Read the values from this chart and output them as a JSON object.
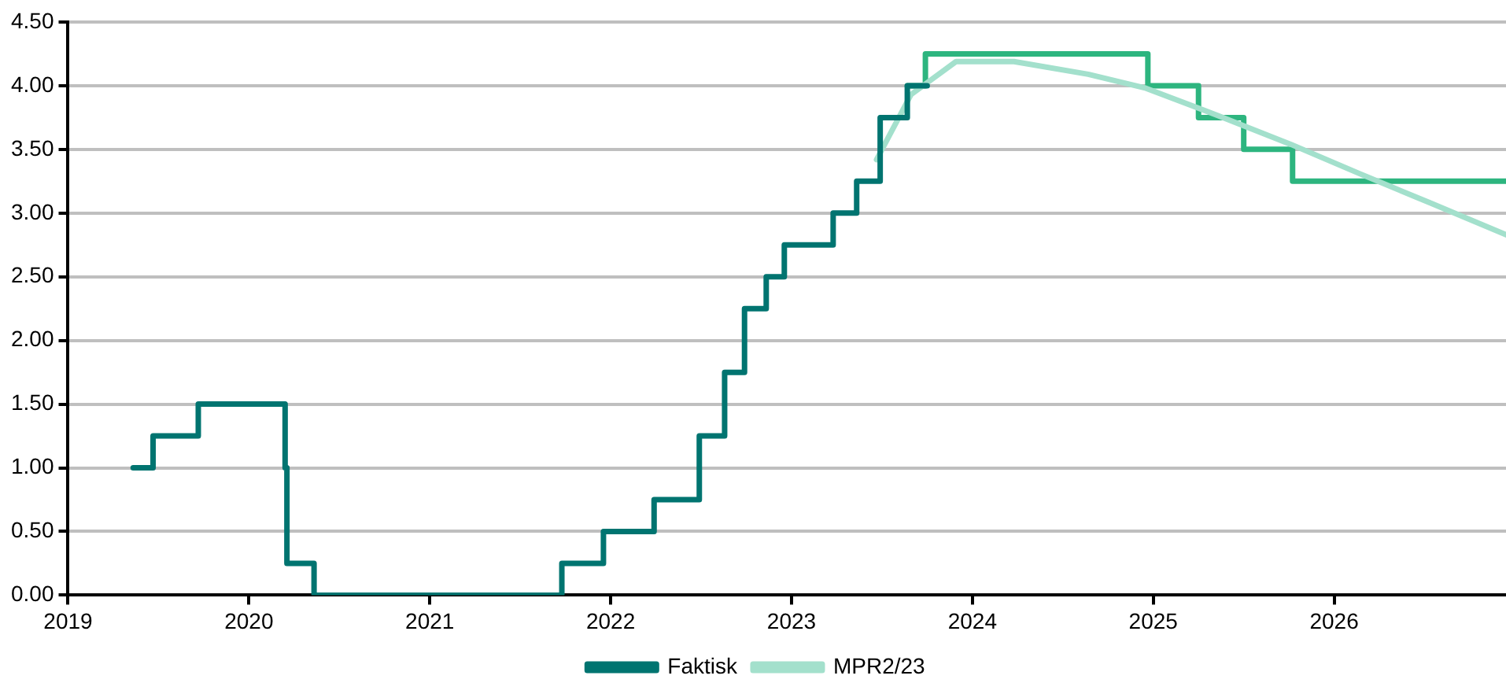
{
  "chart_data": {
    "type": "step",
    "xlim": [
      2019,
      2026.95
    ],
    "xticks": [
      2019,
      2020,
      2021,
      2022,
      2023,
      2024,
      2025,
      2026
    ],
    "ylim": [
      0,
      4.5
    ],
    "yticks": [
      {
        "value": 0,
        "label": "0.00"
      },
      {
        "value": 0.5,
        "label": "0.50"
      },
      {
        "value": 1,
        "label": "1.00"
      },
      {
        "value": 1.5,
        "label": "1.50"
      },
      {
        "value": 2,
        "label": "2.00"
      },
      {
        "value": 2.5,
        "label": "2.50"
      },
      {
        "value": 3,
        "label": "3.00"
      },
      {
        "value": 3.5,
        "label": "3.50"
      },
      {
        "value": 4,
        "label": "4.00"
      },
      {
        "value": 4.5,
        "label": "4.50"
      }
    ],
    "grid": "y",
    "legend": "bottom",
    "marker": "none",
    "series": [
      {
        "name": "Faktisk",
        "color": "#007470",
        "x": [
          2019.36,
          2019.47,
          2019.72,
          2020.2,
          2020.21,
          2020.36,
          2021.73,
          2021.96,
          2022.24,
          2022.49,
          2022.63,
          2022.74,
          2022.86,
          2022.96,
          2023.23,
          2023.36,
          2023.49,
          2023.64,
          2023.75
        ],
        "values": [
          1,
          1.25,
          1.5,
          1,
          0.25,
          0,
          0.25,
          0.5,
          0.75,
          1.25,
          1.75,
          2.25,
          2.5,
          2.75,
          3,
          3.25,
          3.75,
          4,
          4
        ]
      },
      {
        "name": "MPR2/23",
        "type": "line",
        "color": "#a3e0cc",
        "x": [
          2023.47,
          2023.66,
          2023.91,
          2024.23,
          2024.64,
          2024.96,
          2025.35,
          2025.76,
          2026.14,
          2026.53,
          2026.95
        ],
        "values": [
          3.42,
          3.93,
          4.19,
          4.19,
          4.09,
          3.98,
          3.77,
          3.54,
          3.31,
          3.08,
          2.83
        ]
      },
      {
        "color": "#2db57f",
        "x": [
          2023.64,
          2023.74,
          2024.97,
          2025.25,
          2025.5,
          2025.77,
          2026.95
        ],
        "values": [
          4,
          4.25,
          4,
          3.75,
          3.5,
          3.25,
          3.25
        ]
      }
    ]
  }
}
